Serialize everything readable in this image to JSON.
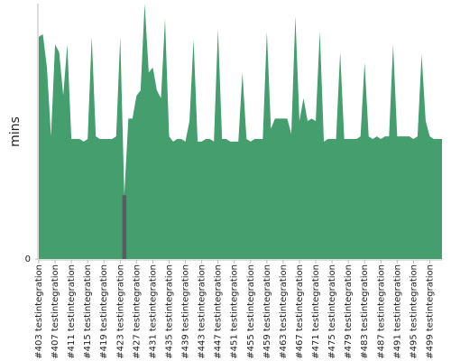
{
  "chart_data": {
    "type": "area",
    "y_label": "mins",
    "categories": [
      "#403 testintegration",
      null,
      null,
      null,
      "#407 testintegration",
      null,
      null,
      null,
      "#411 testintegration",
      null,
      null,
      null,
      "#415 testintegration",
      null,
      null,
      null,
      "#419 testintegration",
      null,
      null,
      null,
      "#423 testintegration",
      null,
      null,
      null,
      "#427 testintegration",
      null,
      null,
      null,
      "#431 testintegration",
      null,
      null,
      null,
      "#435 testintegration",
      null,
      null,
      null,
      "#439 testintegration",
      null,
      null,
      null,
      "#443 testintegration",
      null,
      null,
      null,
      "#447 testintegration",
      null,
      null,
      null,
      "#451 testintegration",
      null,
      null,
      null,
      "#455 testintegration",
      null,
      null,
      null,
      "#459 testintegration",
      null,
      null,
      null,
      "#463 testintegration",
      null,
      null,
      null,
      "#467 testintegration",
      null,
      null,
      null,
      "#471 testintegration",
      null,
      null,
      null,
      "#475 testintegration",
      null,
      null,
      null,
      "#479 testintegration",
      null,
      null,
      null,
      "#483 testintegration",
      null,
      null,
      null,
      "#487 testintegration",
      null,
      null,
      null,
      "#491 testintegration",
      null,
      null,
      null,
      "#495 testintegration",
      null,
      null,
      null,
      "#499 testintegration",
      null,
      null,
      null
    ],
    "series": [
      {
        "color": "#459e6e",
        "values": [
          87,
          88,
          75,
          48,
          84,
          81,
          64,
          84,
          47,
          47,
          47,
          46,
          47,
          87,
          48,
          47,
          47,
          47,
          47,
          48,
          87,
          25,
          55,
          55,
          64,
          66,
          100,
          73,
          75,
          66,
          63,
          94,
          48,
          46,
          47,
          47,
          46,
          54,
          86,
          46,
          46,
          47,
          47,
          46,
          90,
          47,
          47,
          46,
          46,
          46,
          73,
          47,
          46,
          47,
          47,
          47,
          89,
          51,
          55,
          55,
          55,
          55,
          49,
          95,
          54,
          63,
          54,
          55,
          54,
          89,
          46,
          47,
          47,
          47,
          81,
          47,
          47,
          47,
          47,
          48,
          77,
          48,
          47,
          48,
          47,
          48,
          48,
          84,
          48,
          48,
          48,
          48,
          47,
          48,
          80,
          54,
          48,
          47,
          47,
          47
        ]
      },
      {
        "color": "#5a5a62",
        "values": [
          null,
          null,
          null,
          null,
          null,
          null,
          null,
          null,
          null,
          null,
          null,
          null,
          null,
          null,
          null,
          null,
          null,
          null,
          null,
          null,
          null,
          25,
          null,
          null,
          null,
          null,
          null,
          null,
          null,
          null,
          null,
          null,
          null,
          null,
          null,
          null,
          null,
          null,
          null,
          null,
          null,
          null,
          null,
          null,
          null,
          null,
          null,
          null,
          null,
          null,
          null,
          null,
          null,
          null,
          null,
          null,
          null,
          null,
          null,
          null,
          null,
          null,
          null,
          null,
          null,
          null,
          null,
          null,
          null,
          null,
          null,
          null,
          null,
          null,
          null,
          null,
          null,
          null,
          null,
          null,
          null,
          null,
          null,
          null,
          null,
          null,
          null,
          null,
          null,
          null,
          null,
          null,
          null,
          null,
          null,
          null,
          null,
          null,
          null,
          null
        ]
      }
    ],
    "ylim": [
      0,
      100
    ],
    "yticks": [
      0
    ]
  }
}
